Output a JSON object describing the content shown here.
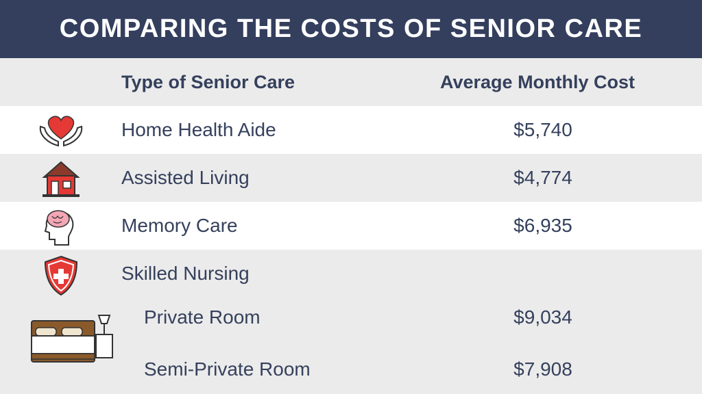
{
  "header": {
    "title": "COMPARING THE COSTS OF SENIOR CARE"
  },
  "table": {
    "columns": [
      "Type of Senior Care",
      "Average Monthly Cost"
    ],
    "rows": [
      {
        "label": "Home Health Aide",
        "cost": "$5,740"
      },
      {
        "label": "Assisted Living",
        "cost": "$4,774"
      },
      {
        "label": "Memory Care",
        "cost": "$6,935"
      },
      {
        "label": "Skilled Nursing",
        "subrows": [
          {
            "label": "Private Room",
            "cost": "$9,034"
          },
          {
            "label": "Semi-Private Room",
            "cost": "$7,908"
          }
        ]
      }
    ]
  }
}
